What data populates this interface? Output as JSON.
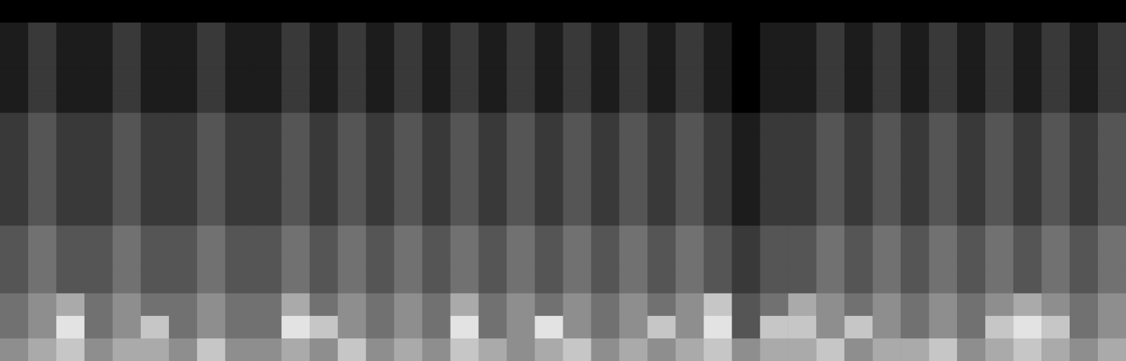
{
  "chart_data": {
    "type": "heatmap",
    "tick_labels": false,
    "grid": false,
    "xlim": [
      0,
      40
    ],
    "ylim": [
      0,
      16
    ],
    "color_range": [
      0,
      9
    ],
    "cells": [
      [
        0,
        0,
        0,
        0,
        0,
        0,
        0,
        0,
        0,
        0,
        0,
        0,
        0,
        0,
        0,
        0,
        0,
        0,
        0,
        0,
        0,
        0,
        0,
        0,
        0,
        0,
        0,
        0,
        0,
        0,
        0,
        0,
        0,
        0,
        0,
        0,
        0,
        0,
        0,
        0
      ],
      [
        1,
        2,
        1,
        1,
        2,
        1,
        1,
        2,
        1,
        1,
        2,
        1,
        2,
        1,
        2,
        1,
        2,
        1,
        2,
        1,
        2,
        1,
        2,
        1,
        2,
        1,
        0,
        1,
        1,
        2,
        1,
        2,
        1,
        2,
        1,
        2,
        1,
        2,
        1,
        2
      ],
      [
        1,
        2,
        1,
        1,
        2,
        1,
        1,
        2,
        1,
        1,
        2,
        1,
        2,
        1,
        2,
        1,
        2,
        1,
        2,
        1,
        2,
        1,
        2,
        1,
        2,
        1,
        0,
        1,
        1,
        2,
        1,
        2,
        1,
        2,
        1,
        2,
        1,
        2,
        1,
        2
      ],
      [
        1,
        2,
        1,
        1,
        2,
        1,
        1,
        2,
        1,
        1,
        2,
        1,
        2,
        1,
        2,
        1,
        2,
        1,
        2,
        1,
        2,
        1,
        2,
        1,
        2,
        1,
        0,
        1,
        1,
        2,
        1,
        2,
        1,
        2,
        1,
        2,
        1,
        2,
        1,
        2
      ],
      [
        1,
        2,
        1,
        1,
        2,
        1,
        1,
        2,
        1,
        1,
        2,
        1,
        2,
        1,
        2,
        1,
        2,
        1,
        2,
        1,
        2,
        1,
        2,
        1,
        2,
        1,
        0,
        1,
        1,
        2,
        1,
        2,
        1,
        2,
        1,
        2,
        1,
        2,
        1,
        2
      ],
      [
        2,
        3,
        2,
        2,
        3,
        2,
        2,
        3,
        2,
        2,
        3,
        2,
        3,
        2,
        3,
        2,
        3,
        2,
        3,
        2,
        3,
        2,
        3,
        2,
        3,
        2,
        1,
        2,
        2,
        3,
        2,
        3,
        2,
        3,
        2,
        3,
        2,
        3,
        2,
        3
      ],
      [
        2,
        3,
        2,
        2,
        3,
        2,
        2,
        3,
        2,
        2,
        3,
        2,
        3,
        2,
        3,
        2,
        3,
        2,
        3,
        2,
        3,
        2,
        3,
        2,
        3,
        2,
        1,
        2,
        2,
        3,
        2,
        3,
        2,
        3,
        2,
        3,
        2,
        3,
        2,
        3
      ],
      [
        2,
        3,
        2,
        2,
        3,
        2,
        2,
        3,
        2,
        2,
        3,
        2,
        3,
        2,
        3,
        2,
        3,
        2,
        3,
        2,
        3,
        2,
        3,
        2,
        3,
        2,
        1,
        2,
        2,
        3,
        2,
        3,
        2,
        3,
        2,
        3,
        2,
        3,
        2,
        3
      ],
      [
        2,
        3,
        2,
        2,
        3,
        2,
        2,
        3,
        2,
        2,
        3,
        2,
        3,
        2,
        3,
        2,
        3,
        2,
        3,
        2,
        3,
        2,
        3,
        2,
        3,
        2,
        1,
        2,
        2,
        3,
        2,
        3,
        2,
        3,
        2,
        3,
        2,
        3,
        2,
        3
      ],
      [
        2,
        3,
        2,
        2,
        3,
        2,
        2,
        3,
        2,
        2,
        3,
        2,
        3,
        2,
        3,
        2,
        3,
        2,
        3,
        2,
        3,
        2,
        3,
        2,
        3,
        2,
        1,
        2,
        2,
        3,
        2,
        3,
        2,
        3,
        2,
        3,
        2,
        3,
        2,
        3
      ],
      [
        3,
        4,
        3,
        3,
        4,
        3,
        3,
        4,
        3,
        3,
        4,
        3,
        4,
        3,
        4,
        3,
        4,
        3,
        4,
        3,
        4,
        3,
        4,
        3,
        4,
        3,
        2,
        3,
        3,
        4,
        3,
        4,
        3,
        4,
        3,
        4,
        3,
        4,
        3,
        4
      ],
      [
        3,
        4,
        3,
        3,
        4,
        3,
        3,
        4,
        3,
        3,
        4,
        3,
        4,
        3,
        4,
        3,
        4,
        3,
        4,
        3,
        4,
        3,
        4,
        3,
        4,
        3,
        2,
        3,
        3,
        4,
        3,
        4,
        3,
        4,
        3,
        4,
        3,
        4,
        3,
        4
      ],
      [
        3,
        4,
        3,
        3,
        4,
        3,
        3,
        4,
        3,
        3,
        4,
        3,
        4,
        3,
        4,
        3,
        4,
        3,
        4,
        3,
        4,
        3,
        4,
        3,
        4,
        3,
        2,
        3,
        3,
        4,
        3,
        4,
        3,
        4,
        3,
        4,
        3,
        4,
        3,
        4
      ],
      [
        4,
        5,
        6,
        4,
        5,
        4,
        4,
        5,
        4,
        4,
        6,
        4,
        5,
        4,
        5,
        4,
        6,
        4,
        5,
        4,
        5,
        4,
        5,
        4,
        5,
        7,
        3,
        4,
        6,
        5,
        4,
        5,
        4,
        5,
        4,
        5,
        6,
        5,
        4,
        5
      ],
      [
        4,
        5,
        8,
        4,
        5,
        7,
        4,
        5,
        4,
        4,
        8,
        7,
        5,
        4,
        5,
        4,
        8,
        4,
        5,
        8,
        5,
        4,
        5,
        7,
        5,
        8,
        3,
        7,
        7,
        5,
        7,
        5,
        4,
        5,
        4,
        7,
        8,
        7,
        4,
        5
      ],
      [
        5,
        6,
        7,
        5,
        6,
        6,
        5,
        7,
        5,
        5,
        6,
        5,
        7,
        5,
        6,
        5,
        7,
        6,
        5,
        6,
        7,
        5,
        6,
        5,
        6,
        7,
        5,
        6,
        6,
        7,
        5,
        6,
        6,
        7,
        5,
        6,
        7,
        6,
        5,
        6
      ]
    ]
  }
}
